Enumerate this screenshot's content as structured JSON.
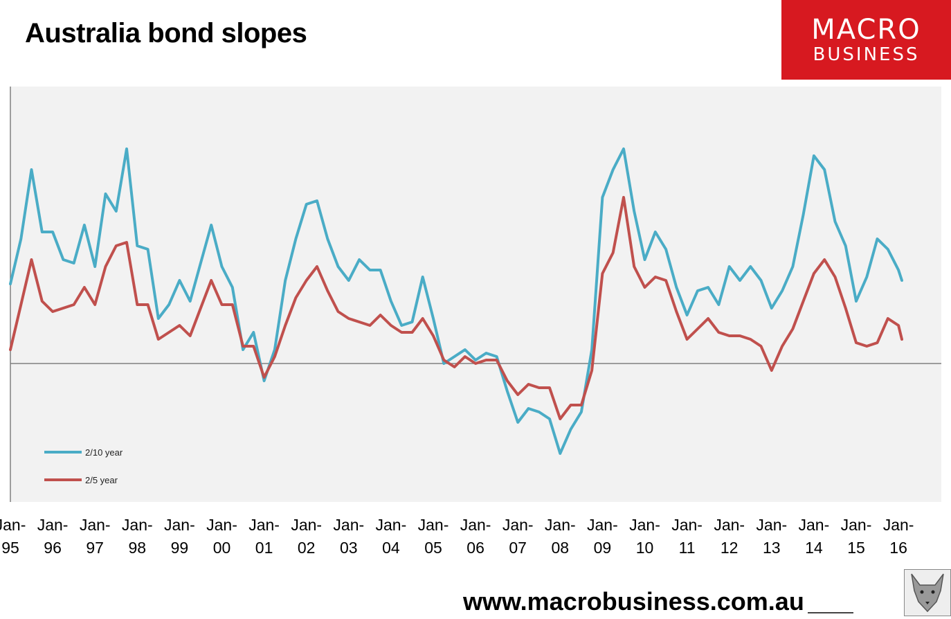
{
  "header": {
    "title": "Australia bond slopes"
  },
  "logo": {
    "line1": "MACRO",
    "line2": "BUSINESS"
  },
  "footer": {
    "url": "www.macrobusiness.com.au"
  },
  "colors": {
    "series_2_10": "#4aacc6",
    "series_2_5": "#c0504d",
    "plot_bg": "#f2f2f2",
    "logo_bg": "#d71920"
  },
  "chart_data": {
    "type": "line",
    "title": "Australia bond slopes",
    "xlabel": "",
    "ylabel": "",
    "ylim": [
      -2.0,
      4.0
    ],
    "xlim": [
      1995.0,
      2017.0
    ],
    "zero_line": 0,
    "grid": false,
    "legend_position": "bottom-left",
    "x_ticks": [
      "Jan-95",
      "Jan-96",
      "Jan-97",
      "Jan-98",
      "Jan-99",
      "Jan-00",
      "Jan-01",
      "Jan-02",
      "Jan-03",
      "Jan-04",
      "Jan-05",
      "Jan-06",
      "Jan-07",
      "Jan-08",
      "Jan-09",
      "Jan-10",
      "Jan-11",
      "Jan-12",
      "Jan-13",
      "Jan-14",
      "Jan-15",
      "Jan-16"
    ],
    "series": [
      {
        "name": "2/10 year",
        "points": [
          [
            1995.0,
            1.15
          ],
          [
            1995.25,
            1.8
          ],
          [
            1995.5,
            2.8
          ],
          [
            1995.75,
            1.9
          ],
          [
            1996.0,
            1.9
          ],
          [
            1996.25,
            1.5
          ],
          [
            1996.5,
            1.45
          ],
          [
            1996.75,
            2.0
          ],
          [
            1997.0,
            1.4
          ],
          [
            1997.25,
            2.45
          ],
          [
            1997.5,
            2.2
          ],
          [
            1997.75,
            3.1
          ],
          [
            1998.0,
            1.7
          ],
          [
            1998.25,
            1.65
          ],
          [
            1998.5,
            0.65
          ],
          [
            1998.75,
            0.85
          ],
          [
            1999.0,
            1.2
          ],
          [
            1999.25,
            0.9
          ],
          [
            1999.5,
            1.45
          ],
          [
            1999.75,
            2.0
          ],
          [
            2000.0,
            1.4
          ],
          [
            2000.25,
            1.1
          ],
          [
            2000.5,
            0.2
          ],
          [
            2000.75,
            0.45
          ],
          [
            2001.0,
            -0.25
          ],
          [
            2001.25,
            0.2
          ],
          [
            2001.5,
            1.2
          ],
          [
            2001.75,
            1.8
          ],
          [
            2002.0,
            2.3
          ],
          [
            2002.25,
            2.35
          ],
          [
            2002.5,
            1.8
          ],
          [
            2002.75,
            1.4
          ],
          [
            2003.0,
            1.2
          ],
          [
            2003.25,
            1.5
          ],
          [
            2003.5,
            1.35
          ],
          [
            2003.75,
            1.35
          ],
          [
            2004.0,
            0.9
          ],
          [
            2004.25,
            0.55
          ],
          [
            2004.5,
            0.6
          ],
          [
            2004.75,
            1.25
          ],
          [
            2005.0,
            0.65
          ],
          [
            2005.25,
            0.0
          ],
          [
            2005.5,
            0.1
          ],
          [
            2005.75,
            0.2
          ],
          [
            2006.0,
            0.05
          ],
          [
            2006.25,
            0.15
          ],
          [
            2006.5,
            0.1
          ],
          [
            2006.75,
            -0.4
          ],
          [
            2007.0,
            -0.85
          ],
          [
            2007.25,
            -0.65
          ],
          [
            2007.5,
            -0.7
          ],
          [
            2007.75,
            -0.8
          ],
          [
            2008.0,
            -1.3
          ],
          [
            2008.25,
            -0.95
          ],
          [
            2008.5,
            -0.7
          ],
          [
            2008.75,
            0.2
          ],
          [
            2009.0,
            2.4
          ],
          [
            2009.25,
            2.8
          ],
          [
            2009.5,
            3.1
          ],
          [
            2009.75,
            2.2
          ],
          [
            2010.0,
            1.5
          ],
          [
            2010.25,
            1.9
          ],
          [
            2010.5,
            1.65
          ],
          [
            2010.75,
            1.1
          ],
          [
            2011.0,
            0.7
          ],
          [
            2011.25,
            1.05
          ],
          [
            2011.5,
            1.1
          ],
          [
            2011.75,
            0.85
          ],
          [
            2012.0,
            1.4
          ],
          [
            2012.25,
            1.2
          ],
          [
            2012.5,
            1.4
          ],
          [
            2012.75,
            1.2
          ],
          [
            2013.0,
            0.8
          ],
          [
            2013.25,
            1.05
          ],
          [
            2013.5,
            1.4
          ],
          [
            2013.75,
            2.15
          ],
          [
            2014.0,
            3.0
          ],
          [
            2014.25,
            2.8
          ],
          [
            2014.5,
            2.05
          ],
          [
            2014.75,
            1.7
          ],
          [
            2015.0,
            0.9
          ],
          [
            2015.25,
            1.25
          ],
          [
            2015.5,
            1.8
          ],
          [
            2015.75,
            1.65
          ],
          [
            2016.0,
            1.35
          ],
          [
            2016.08,
            1.2
          ]
        ]
      },
      {
        "name": "2/5 year",
        "points": [
          [
            1995.0,
            0.2
          ],
          [
            1995.25,
            0.85
          ],
          [
            1995.5,
            1.5
          ],
          [
            1995.75,
            0.9
          ],
          [
            1996.0,
            0.75
          ],
          [
            1996.25,
            0.8
          ],
          [
            1996.5,
            0.85
          ],
          [
            1996.75,
            1.1
          ],
          [
            1997.0,
            0.85
          ],
          [
            1997.25,
            1.4
          ],
          [
            1997.5,
            1.7
          ],
          [
            1997.75,
            1.75
          ],
          [
            1998.0,
            0.85
          ],
          [
            1998.25,
            0.85
          ],
          [
            1998.5,
            0.35
          ],
          [
            1998.75,
            0.45
          ],
          [
            1999.0,
            0.55
          ],
          [
            1999.25,
            0.4
          ],
          [
            1999.5,
            0.8
          ],
          [
            1999.75,
            1.2
          ],
          [
            2000.0,
            0.85
          ],
          [
            2000.25,
            0.85
          ],
          [
            2000.5,
            0.25
          ],
          [
            2000.75,
            0.25
          ],
          [
            2001.0,
            -0.2
          ],
          [
            2001.25,
            0.1
          ],
          [
            2001.5,
            0.55
          ],
          [
            2001.75,
            0.95
          ],
          [
            2002.0,
            1.2
          ],
          [
            2002.25,
            1.4
          ],
          [
            2002.5,
            1.05
          ],
          [
            2002.75,
            0.75
          ],
          [
            2003.0,
            0.65
          ],
          [
            2003.25,
            0.6
          ],
          [
            2003.5,
            0.55
          ],
          [
            2003.75,
            0.7
          ],
          [
            2004.0,
            0.55
          ],
          [
            2004.25,
            0.45
          ],
          [
            2004.5,
            0.45
          ],
          [
            2004.75,
            0.65
          ],
          [
            2005.0,
            0.4
          ],
          [
            2005.25,
            0.05
          ],
          [
            2005.5,
            -0.05
          ],
          [
            2005.75,
            0.1
          ],
          [
            2006.0,
            0.0
          ],
          [
            2006.25,
            0.05
          ],
          [
            2006.5,
            0.05
          ],
          [
            2006.75,
            -0.25
          ],
          [
            2007.0,
            -0.45
          ],
          [
            2007.25,
            -0.3
          ],
          [
            2007.5,
            -0.35
          ],
          [
            2007.75,
            -0.35
          ],
          [
            2008.0,
            -0.8
          ],
          [
            2008.25,
            -0.6
          ],
          [
            2008.5,
            -0.6
          ],
          [
            2008.75,
            -0.1
          ],
          [
            2009.0,
            1.3
          ],
          [
            2009.25,
            1.6
          ],
          [
            2009.5,
            2.4
          ],
          [
            2009.75,
            1.4
          ],
          [
            2010.0,
            1.1
          ],
          [
            2010.25,
            1.25
          ],
          [
            2010.5,
            1.2
          ],
          [
            2010.75,
            0.75
          ],
          [
            2011.0,
            0.35
          ],
          [
            2011.25,
            0.5
          ],
          [
            2011.5,
            0.65
          ],
          [
            2011.75,
            0.45
          ],
          [
            2012.0,
            0.4
          ],
          [
            2012.25,
            0.4
          ],
          [
            2012.5,
            0.35
          ],
          [
            2012.75,
            0.25
          ],
          [
            2013.0,
            -0.1
          ],
          [
            2013.25,
            0.25
          ],
          [
            2013.5,
            0.5
          ],
          [
            2013.75,
            0.9
          ],
          [
            2014.0,
            1.3
          ],
          [
            2014.25,
            1.5
          ],
          [
            2014.5,
            1.25
          ],
          [
            2014.75,
            0.8
          ],
          [
            2015.0,
            0.3
          ],
          [
            2015.25,
            0.25
          ],
          [
            2015.5,
            0.3
          ],
          [
            2015.75,
            0.65
          ],
          [
            2016.0,
            0.55
          ],
          [
            2016.08,
            0.35
          ]
        ]
      }
    ]
  }
}
